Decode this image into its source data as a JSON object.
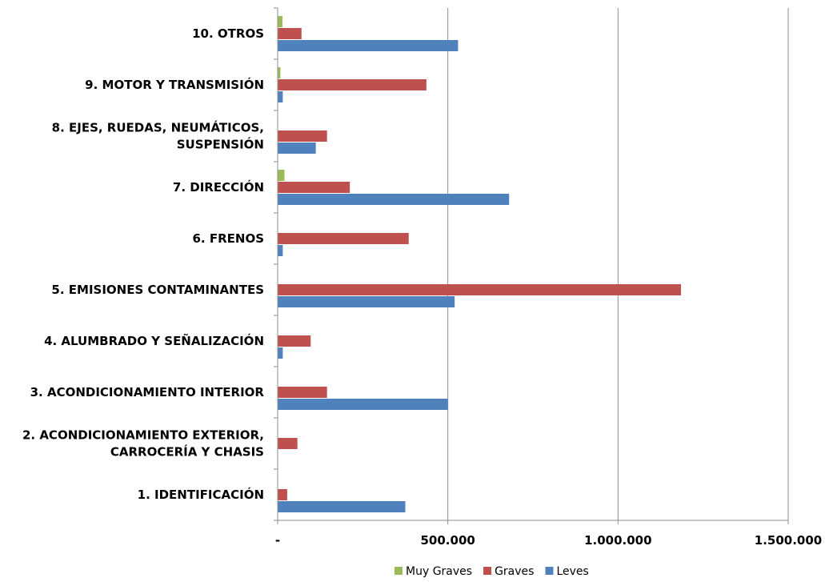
{
  "chart_data": {
    "type": "bar",
    "orientation": "horizontal",
    "categories": [
      [
        "1. IDENTIFICACIÓN"
      ],
      [
        "2. ACONDICIONAMIENTO EXTERIOR,",
        "CARROCERÍA Y CHASIS"
      ],
      [
        "3. ACONDICIONAMIENTO INTERIOR"
      ],
      [
        "4. ALUMBRADO Y SEÑALIZACIÓN"
      ],
      [
        "5. EMISIONES CONTAMINANTES"
      ],
      [
        "6. FRENOS"
      ],
      [
        "7. DIRECCIÓN"
      ],
      [
        "8. EJES, RUEDAS, NEUMÁTICOS,",
        "SUSPENSIÓN"
      ],
      [
        "9. MOTOR Y TRANSMISIÓN"
      ],
      [
        "10. OTROS"
      ]
    ],
    "series": [
      {
        "name": "Muy Graves",
        "color": "#9bbb59",
        "values": [
          0,
          0,
          0,
          0,
          0,
          0,
          20000,
          0,
          8000,
          14000
        ]
      },
      {
        "name": "Graves",
        "color": "#c0504d",
        "values": [
          28000,
          58000,
          145000,
          97000,
          1185000,
          385000,
          212000,
          145000,
          437000,
          70000
        ]
      },
      {
        "name": "Leves",
        "color": "#4f81bd",
        "values": [
          375000,
          0,
          500000,
          15000,
          520000,
          15000,
          680000,
          112000,
          15000,
          530000
        ]
      }
    ],
    "xlim": [
      0,
      1500000
    ],
    "xticks": [
      {
        "value": 0,
        "label": "-"
      },
      {
        "value": 500000,
        "label": "500.000"
      },
      {
        "value": 1000000,
        "label": "1.000.000"
      },
      {
        "value": 1500000,
        "label": "1.500.000"
      }
    ],
    "grid": true,
    "legend_position": "bottom"
  }
}
